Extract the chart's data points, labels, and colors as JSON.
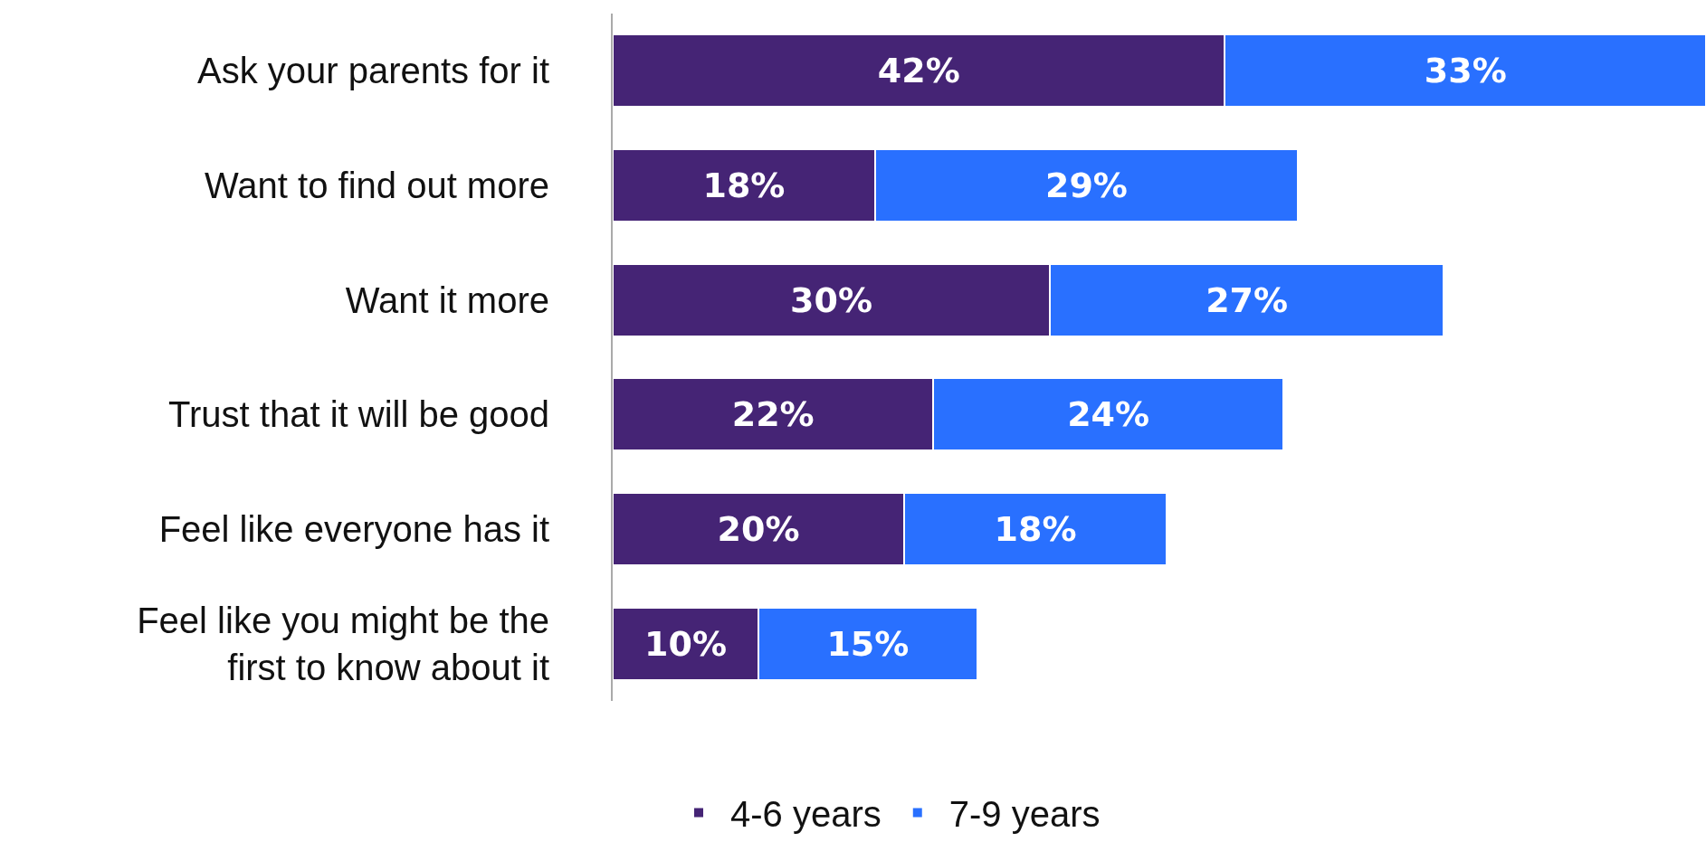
{
  "chart_data": {
    "type": "bar",
    "orientation": "horizontal",
    "stacked": true,
    "legend": "bottom",
    "grid": false,
    "categories": [
      "Ask your parents for it",
      "Want to find out more",
      "Want it more",
      "Trust that it will be good",
      "Feel like everyone has it",
      "Feel like you might be the first to know about it"
    ],
    "series": [
      {
        "name": "4-6 years",
        "color": "#452475",
        "values": [
          42,
          18,
          30,
          22,
          20,
          10
        ],
        "value_labels": [
          "42%",
          "18%",
          "30%",
          "22%",
          "20%",
          "10%"
        ]
      },
      {
        "name": "7-9 years",
        "color": "#2970ff",
        "values": [
          33,
          29,
          27,
          24,
          18,
          15
        ],
        "value_labels": [
          "33%",
          "29%",
          "27%",
          "24%",
          "18%",
          "15%"
        ]
      }
    ]
  }
}
